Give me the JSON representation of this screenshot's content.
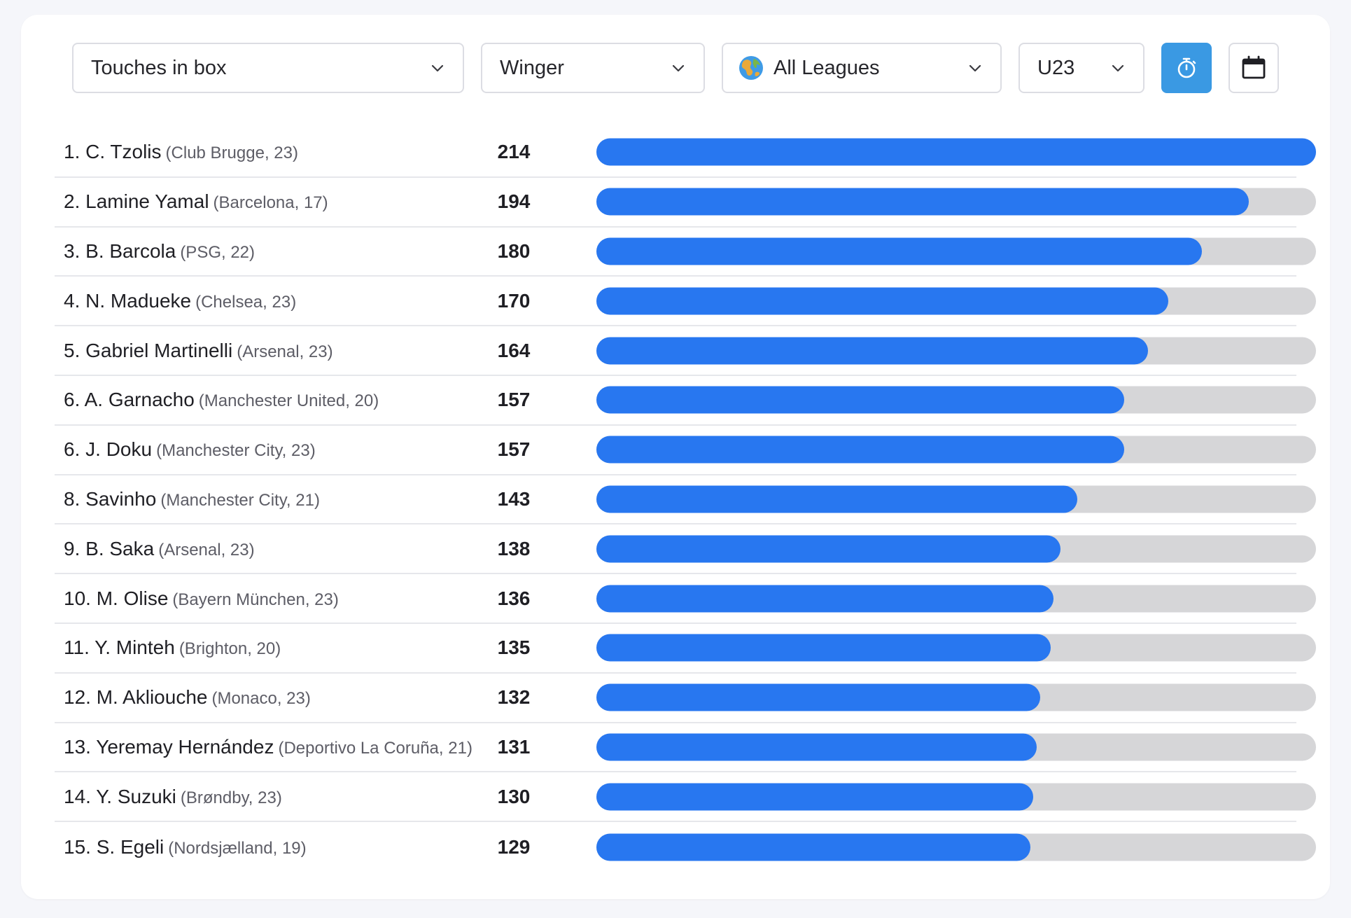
{
  "filters": {
    "metric": "Touches in box",
    "position": "Winger",
    "league": "All Leagues",
    "age": "U23"
  },
  "icons": {
    "timer": "stopwatch-icon",
    "calendar": "calendar-icon",
    "globe": "globe-icon",
    "chevron": "chevron-down-icon"
  },
  "colors": {
    "bar": "#2877f0",
    "track": "#d6d6d8",
    "timer_button": "#3a99e3"
  },
  "max_value": 214,
  "players": [
    {
      "rank": "1.",
      "name": "C. Tzolis",
      "meta": "(Club Brugge, 23)",
      "value": 214
    },
    {
      "rank": "2.",
      "name": "Lamine Yamal",
      "meta": "(Barcelona, 17)",
      "value": 194
    },
    {
      "rank": "3.",
      "name": "B. Barcola",
      "meta": "(PSG, 22)",
      "value": 180
    },
    {
      "rank": "4.",
      "name": "N. Madueke",
      "meta": "(Chelsea, 23)",
      "value": 170
    },
    {
      "rank": "5.",
      "name": "Gabriel Martinelli",
      "meta": "(Arsenal, 23)",
      "value": 164
    },
    {
      "rank": "6.",
      "name": "A. Garnacho",
      "meta": "(Manchester United, 20)",
      "value": 157
    },
    {
      "rank": "6.",
      "name": "J. Doku",
      "meta": "(Manchester City, 23)",
      "value": 157
    },
    {
      "rank": "8.",
      "name": "Savinho",
      "meta": "(Manchester City, 21)",
      "value": 143
    },
    {
      "rank": "9.",
      "name": "B. Saka",
      "meta": "(Arsenal, 23)",
      "value": 138
    },
    {
      "rank": "10.",
      "name": "M. Olise",
      "meta": "(Bayern München, 23)",
      "value": 136
    },
    {
      "rank": "11.",
      "name": "Y. Minteh",
      "meta": "(Brighton, 20)",
      "value": 135
    },
    {
      "rank": "12.",
      "name": "M. Akliouche",
      "meta": "(Monaco, 23)",
      "value": 132
    },
    {
      "rank": "13.",
      "name": "Yeremay Hernández",
      "meta": "(Deportivo La Coruña, 21)",
      "value": 131
    },
    {
      "rank": "14.",
      "name": "Y. Suzuki",
      "meta": "(Brøndby, 23)",
      "value": 130
    },
    {
      "rank": "15.",
      "name": "S. Egeli",
      "meta": "(Nordsjælland, 19)",
      "value": 129
    }
  ]
}
